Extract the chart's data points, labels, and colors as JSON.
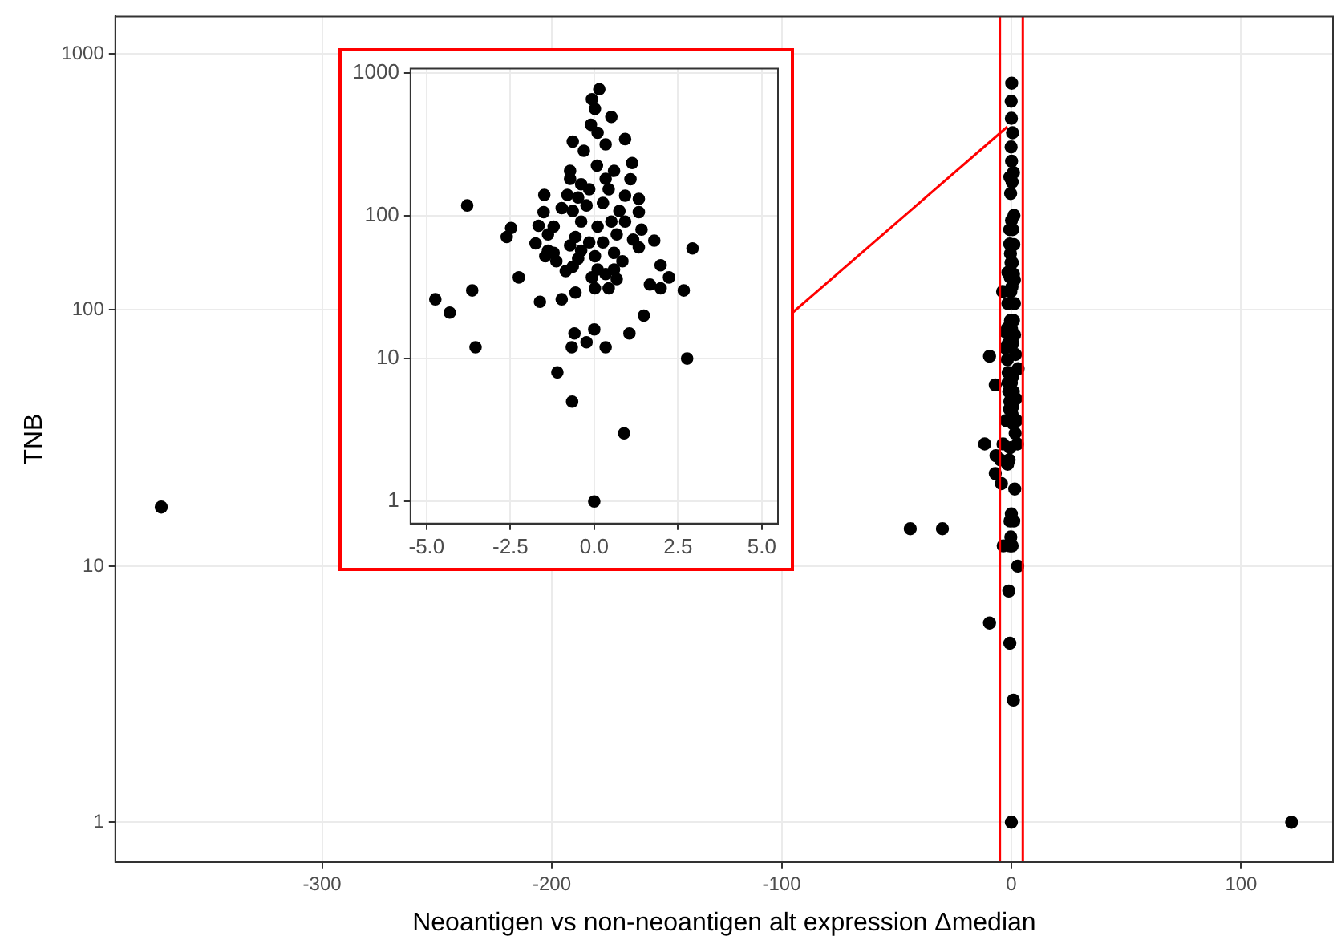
{
  "chart_data": [
    {
      "type": "scatter",
      "xlabel": "Neoantigen vs non-neoantigen alt expression Δmedian",
      "ylabel": "TNB",
      "color": "#000000",
      "marker": "circle",
      "grid": true,
      "log": "y",
      "xlim": [
        -390,
        140
      ],
      "xticks": [
        -300,
        -200,
        -100,
        0,
        100
      ],
      "ylim": [
        0.72,
        1400
      ],
      "yticks": [
        1,
        10,
        100,
        1000
      ],
      "ref_lines": [
        {
          "axis": "x",
          "value": -5,
          "color": "#ff0000"
        },
        {
          "axis": "x",
          "value": 5,
          "color": "#ff0000"
        }
      ],
      "x": [
        -370,
        -44,
        -30,
        122,
        -9.5,
        -7,
        -11.6,
        -9.5,
        -7,
        -6.7,
        -4.74,
        -4.31,
        -3.64,
        -3.54,
        -3.79,
        -2.61,
        -2.48,
        -2.25,
        -1.75,
        -1.62,
        -1.66,
        -1.49,
        -1.51,
        -1.38,
        -1.13,
        -0.97,
        -0.85,
        -0.64,
        -0.56,
        -1.1,
        -0.66,
        -0.67,
        -0.59,
        -0.23,
        0,
        0.34,
        1.05,
        1.48,
        0.89,
        0,
        2.77,
        2.67,
        2.93,
        2.23,
        1.98,
        1.79,
        1.66,
        0.15,
        -0.07,
        0.02,
        0.51,
        -0.1,
        0.1,
        0.92,
        -0.64,
        0.34,
        -0.31,
        1.13,
        -0.72,
        0.08,
        1.08,
        -0.72,
        -0.39,
        0.59,
        -0.15,
        0.92,
        1.33,
        -0.23,
        0.26,
        1.33,
        -0.39,
        0.1,
        0.92,
        1.41,
        0.67,
        0.02,
        0.59,
        0.84,
        0.34,
        0.67,
        0.59,
        -1.46,
        -1.38,
        0.43,
        -0.48
      ],
      "values": [
        17,
        14,
        14,
        1,
        66,
        51,
        30,
        6,
        23,
        27,
        26,
        21,
        30,
        12,
        118,
        71,
        82,
        37,
        64,
        25,
        85,
        140,
        106,
        74,
        48,
        26,
        41,
        44,
        29,
        8,
        5,
        12,
        15,
        13,
        16,
        12,
        15,
        20,
        3,
        1,
        10,
        30,
        59,
        37,
        45,
        67,
        33,
        768,
        653,
        560,
        492,
        433,
        381,
        344,
        330,
        316,
        285,
        234,
        206,
        224,
        180,
        181,
        166,
        206,
        153,
        138,
        131,
        118,
        123,
        106,
        91,
        84,
        91,
        80,
        74,
        52,
        55,
        48,
        39,
        36,
        42,
        52,
        57,
        153,
        134
      ]
    },
    {
      "type": "scatter",
      "color": "#000000",
      "marker": "circle",
      "grid": true,
      "log": "y",
      "xlim": [
        -5.48,
        5.48
      ],
      "xticks": [
        {
          "value": -5,
          "label": "-5.0"
        },
        {
          "value": -2.5,
          "label": "-2.5"
        },
        {
          "value": 0,
          "label": "0.0"
        },
        {
          "value": 2.5,
          "label": "2.5"
        },
        {
          "value": 5,
          "label": "5.0"
        }
      ],
      "ylim": [
        0.72,
        1070
      ],
      "yticks": [
        1,
        10,
        100,
        1000
      ],
      "x": [
        -4.74,
        -4.31,
        -3.64,
        -3.54,
        -3.79,
        -2.61,
        -2.48,
        -2.25,
        -1.75,
        -1.62,
        -1.66,
        -1.49,
        -1.51,
        -1.38,
        -1.21,
        -1.13,
        -0.97,
        -0.85,
        -0.64,
        -0.56,
        -1.1,
        -0.66,
        -0.67,
        -0.59,
        -0.23,
        0,
        0.34,
        1.05,
        1.48,
        0.89,
        0,
        2.77,
        2.67,
        2.93,
        2.23,
        1.98,
        1.79,
        1.66,
        1.98,
        0.15,
        -0.07,
        0.02,
        0.51,
        -0.1,
        0.1,
        0.92,
        -0.64,
        0.34,
        -0.31,
        1.13,
        -0.72,
        0.08,
        1.08,
        -0.72,
        -0.39,
        0.59,
        0.34,
        -0.15,
        0.92,
        1.33,
        -0.8,
        -0.97,
        -0.64,
        -0.23,
        0.26,
        0.75,
        1.33,
        -1.21,
        -0.39,
        0.1,
        0.51,
        0.92,
        1.41,
        -0.56,
        -0.15,
        0.26,
        0.67,
        1.16,
        1.33,
        -0.72,
        -0.39,
        0.02,
        0.59,
        0.84,
        0.1,
        0.34,
        0.67,
        -0.07,
        0.02,
        0.43,
        0.59,
        -1.46,
        -1.38,
        -0.48,
        0.43,
        -0.48
      ],
      "values": [
        26,
        21,
        30,
        12,
        118,
        71,
        82,
        37,
        64,
        25,
        85,
        140,
        106,
        74,
        55,
        48,
        26,
        41,
        44,
        29,
        8,
        5,
        12,
        15,
        13,
        16,
        12,
        15,
        20,
        3,
        1,
        10,
        30,
        59,
        37,
        45,
        67,
        33,
        31,
        768,
        653,
        560,
        492,
        433,
        381,
        344,
        330,
        316,
        285,
        234,
        206,
        224,
        180,
        181,
        166,
        206,
        181,
        153,
        138,
        131,
        140,
        113,
        108,
        118,
        123,
        108,
        106,
        84,
        91,
        84,
        91,
        91,
        80,
        71,
        65,
        65,
        74,
        68,
        60,
        62,
        57,
        52,
        55,
        48,
        42,
        39,
        36,
        37,
        31,
        31,
        42,
        52,
        57,
        50,
        153,
        134
      ]
    }
  ]
}
